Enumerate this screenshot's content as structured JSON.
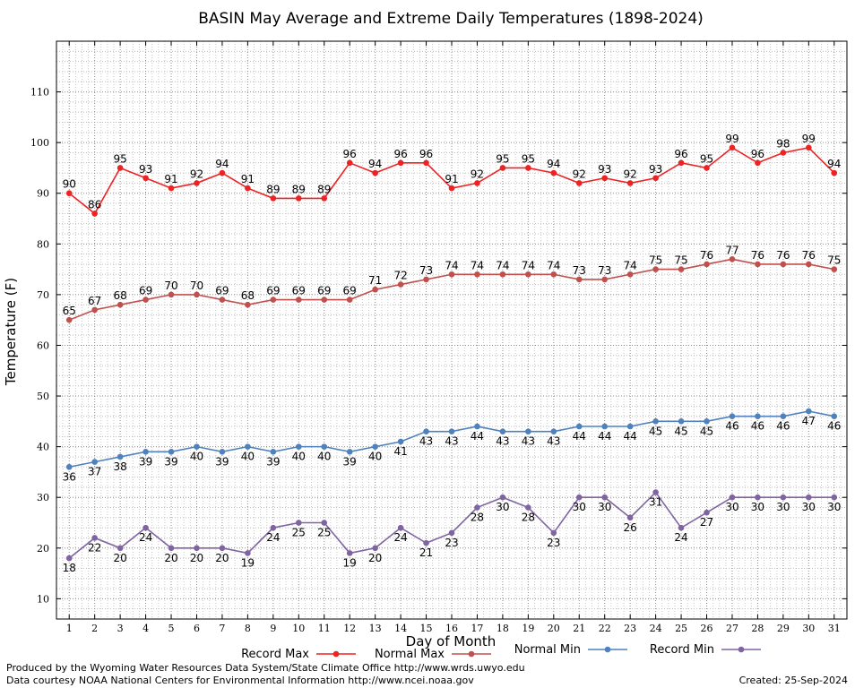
{
  "chart_data": {
    "type": "line",
    "title": "BASIN May Average and Extreme Daily Temperatures (1898-2024)",
    "xlabel": "Day of Month",
    "ylabel": "Temperature (F)",
    "x": [
      1,
      2,
      3,
      4,
      5,
      6,
      7,
      8,
      9,
      10,
      11,
      12,
      13,
      14,
      15,
      16,
      17,
      18,
      19,
      20,
      21,
      22,
      23,
      24,
      25,
      26,
      27,
      28,
      29,
      30,
      31
    ],
    "ylim": [
      6,
      120
    ],
    "yticks": [
      10,
      20,
      30,
      40,
      50,
      60,
      70,
      80,
      90,
      100,
      110
    ],
    "grid": true,
    "legend_position": "bottom",
    "series": [
      {
        "name": "Record Max",
        "color": "#ee2222",
        "label_position": "above",
        "values": [
          90,
          86,
          95,
          93,
          91,
          92,
          94,
          91,
          89,
          89,
          89,
          96,
          94,
          96,
          96,
          91,
          92,
          95,
          95,
          94,
          92,
          93,
          92,
          93,
          96,
          95,
          99,
          96,
          98,
          99,
          94
        ]
      },
      {
        "name": "Normal Max",
        "color": "#c0504d",
        "label_position": "above",
        "values": [
          65,
          67,
          68,
          69,
          70,
          70,
          69,
          68,
          69,
          69,
          69,
          69,
          71,
          72,
          73,
          74,
          74,
          74,
          74,
          74,
          73,
          73,
          74,
          75,
          75,
          76,
          77,
          76,
          76,
          76,
          75
        ]
      },
      {
        "name": "Normal Min",
        "color": "#4f81bd",
        "label_position": "below",
        "values": [
          36,
          37,
          38,
          39,
          39,
          40,
          39,
          40,
          39,
          40,
          40,
          39,
          40,
          41,
          43,
          43,
          44,
          43,
          43,
          43,
          44,
          44,
          44,
          45,
          45,
          45,
          46,
          46,
          46,
          47,
          46
        ]
      },
      {
        "name": "Record Min",
        "color": "#8064a2",
        "label_position": "below",
        "values": [
          18,
          22,
          20,
          24,
          20,
          20,
          20,
          19,
          24,
          25,
          25,
          19,
          20,
          24,
          21,
          23,
          28,
          30,
          28,
          23,
          30,
          30,
          26,
          31,
          24,
          27,
          30,
          30,
          30,
          30,
          30
        ]
      }
    ]
  },
  "footer": {
    "produced_by": "Produced by the Wyoming Water Resources Data System/State Climate Office http://www.wrds.uwyo.edu",
    "courtesy": "Data courtesy NOAA National Centers for Environmental Information http://www.ncei.noaa.gov",
    "created": "Created:  25-Sep-2024"
  }
}
